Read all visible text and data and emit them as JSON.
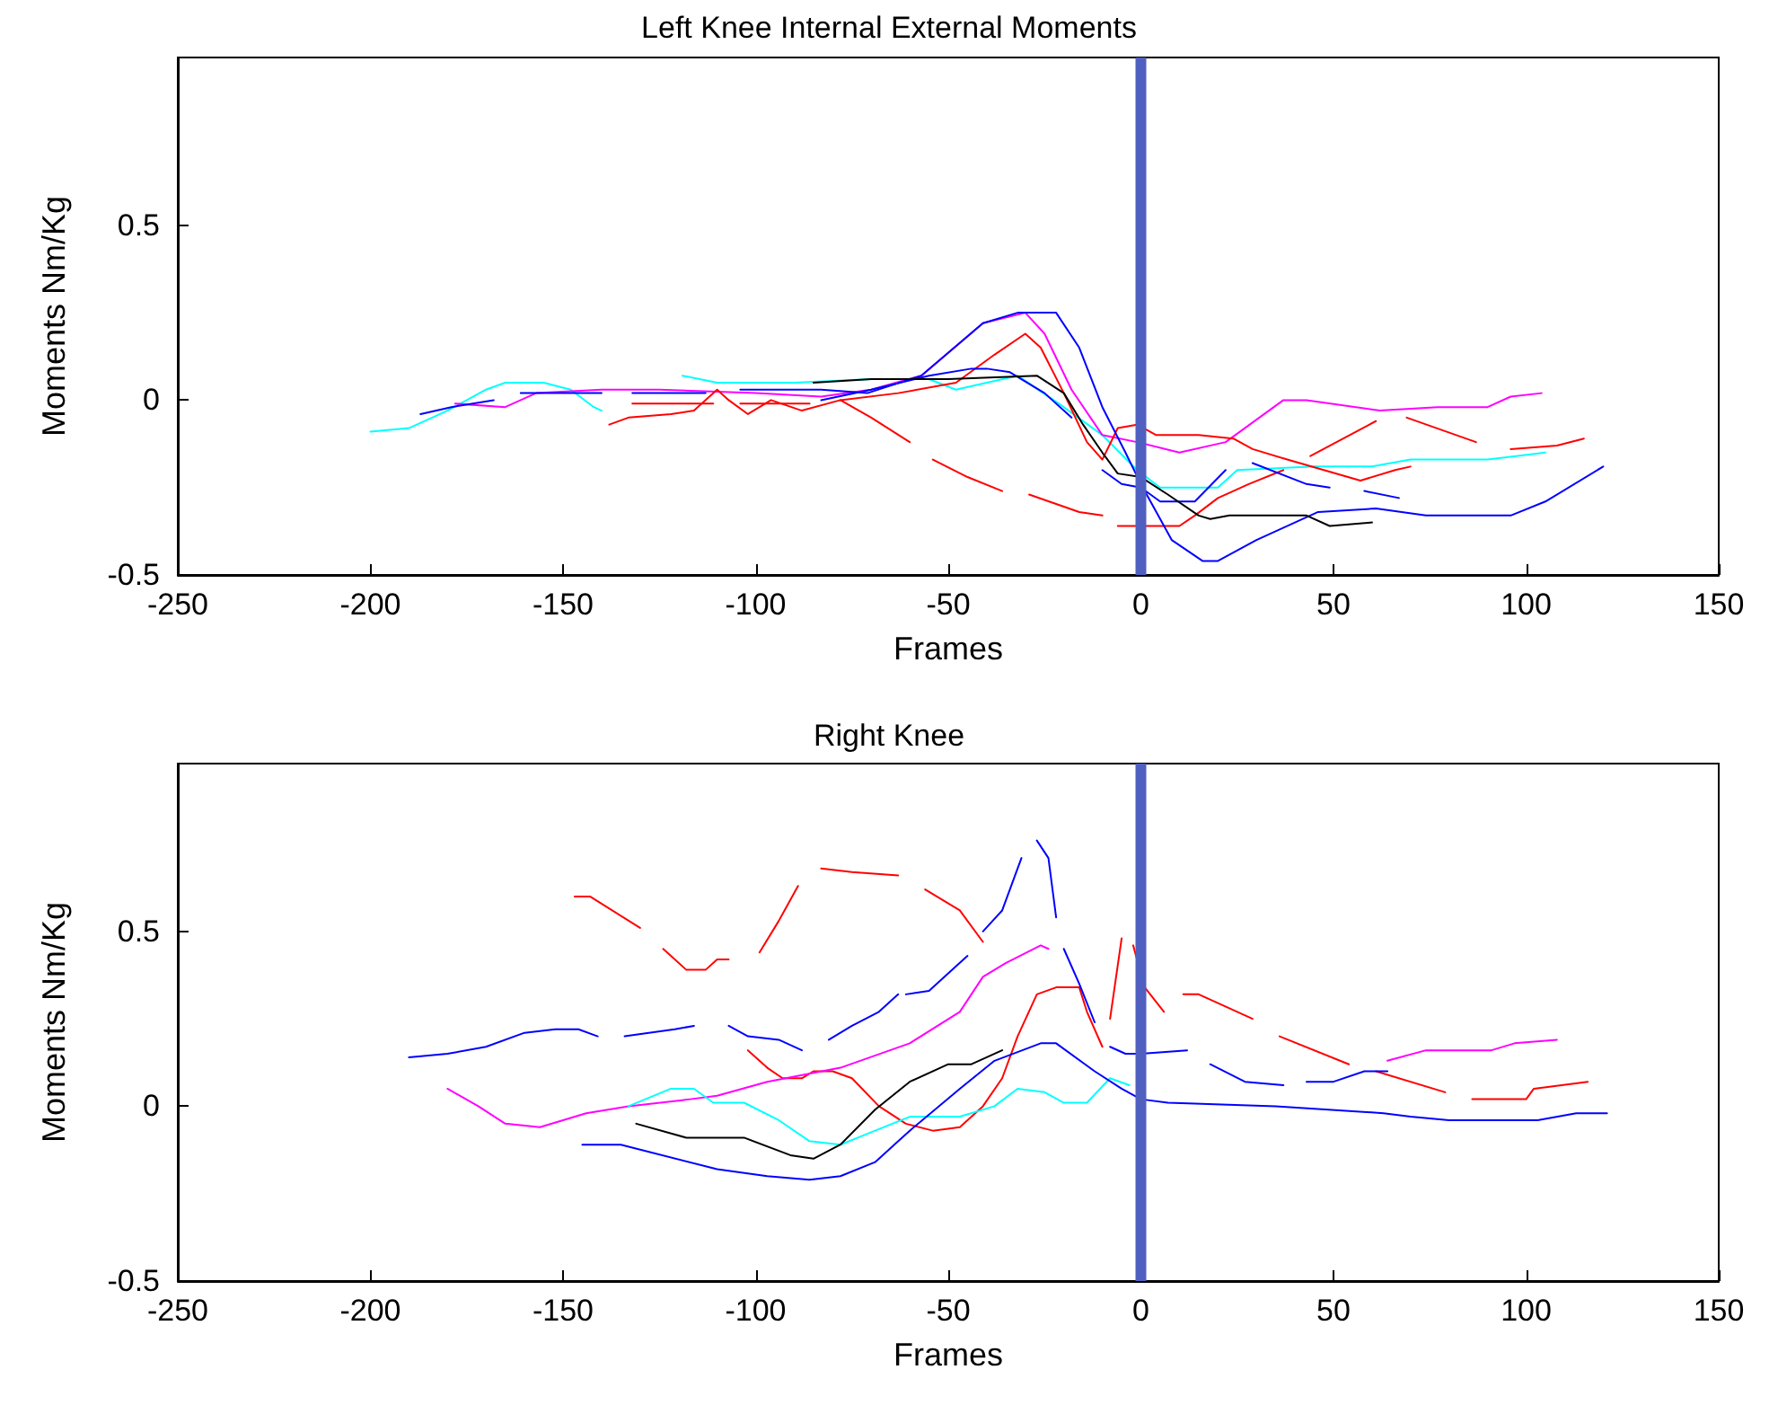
{
  "chart_data": [
    {
      "type": "line",
      "title": "Left Knee Internal External Moments",
      "xlabel": "Frames",
      "ylabel": "Moments Nm/Kg",
      "xlim": [
        -250,
        150
      ],
      "xticks": [
        -250,
        -200,
        -150,
        -100,
        -50,
        0,
        50,
        100,
        150
      ],
      "ylim": [
        -0.5,
        0.98
      ],
      "yticks": [
        -0.5,
        0,
        0.5
      ],
      "ref_lines": [
        {
          "axis": "x",
          "value": 0,
          "color": "#5060c0"
        }
      ],
      "series": [
        {
          "color": "#00ffff",
          "x": [
            -200,
            -190,
            -180,
            -170,
            -165,
            -155,
            -148,
            -142,
            -140,
            -130,
            -119,
            -110,
            -90,
            -70,
            -55,
            -48,
            -40,
            -32,
            -20,
            -10,
            -1,
            5,
            20,
            25,
            45,
            60,
            70,
            90,
            105
          ],
          "values": [
            -0.09,
            -0.08,
            -0.03,
            0.03,
            0.05,
            0.05,
            0.03,
            -0.02,
            -0.03,
            null,
            0.07,
            0.05,
            0.05,
            0.06,
            0.06,
            0.03,
            0.05,
            0.07,
            -0.02,
            -0.1,
            -0.2,
            -0.25,
            -0.25,
            -0.2,
            -0.19,
            -0.19,
            -0.17,
            -0.17,
            -0.15
          ]
        },
        {
          "color": "#ff00ff",
          "x": [
            -178,
            -165,
            -157,
            -140,
            -125,
            -100,
            -83,
            -70,
            -57,
            -41,
            -30,
            -25,
            -18,
            -10,
            -1,
            10,
            22,
            37,
            43,
            62,
            77,
            90,
            96,
            104
          ],
          "values": [
            -0.01,
            -0.02,
            0.02,
            0.03,
            0.03,
            0.02,
            0.01,
            0.03,
            0.07,
            0.22,
            0.25,
            0.19,
            0.03,
            -0.1,
            -0.12,
            -0.15,
            -0.12,
            0.0,
            0.0,
            -0.03,
            -0.02,
            -0.02,
            0.01,
            0.02
          ]
        },
        {
          "color": "#ff0000",
          "x": [
            -138,
            -133,
            -122,
            -116,
            -110,
            -107,
            -102,
            -96,
            -88,
            -78,
            -63,
            -48,
            -38,
            -30,
            -26,
            -20,
            -14,
            -10,
            -6,
            -1,
            4,
            15,
            24,
            29,
            38,
            57,
            66,
            70
          ],
          "values": [
            -0.07,
            -0.05,
            -0.04,
            -0.03,
            0.03,
            0.0,
            -0.04,
            0.0,
            -0.03,
            0.0,
            0.02,
            0.05,
            0.13,
            0.19,
            0.15,
            0.02,
            -0.12,
            -0.17,
            -0.08,
            -0.07,
            -0.1,
            -0.1,
            -0.11,
            -0.14,
            -0.17,
            -0.23,
            -0.2,
            -0.19
          ]
        },
        {
          "color": "#ff0000",
          "x": [
            -78,
            -70,
            -60,
            -57,
            -54,
            -45,
            -36,
            -33,
            -29,
            -16,
            -10,
            -8,
            -6,
            10,
            14,
            20,
            28,
            37,
            40,
            44,
            61,
            65,
            69,
            87,
            92,
            96,
            108,
            115
          ],
          "values": [
            0,
            -0.05,
            -0.12,
            null,
            -0.17,
            -0.22,
            -0.26,
            null,
            -0.27,
            -0.32,
            -0.33,
            null,
            -0.36,
            -0.36,
            -0.33,
            -0.28,
            -0.24,
            -0.2,
            null,
            -0.16,
            -0.06,
            null,
            -0.05,
            -0.12,
            null,
            -0.14,
            -0.13,
            -0.11
          ]
        },
        {
          "color": "#ff0000",
          "x": [
            -132,
            -111,
            -108,
            -104,
            -86
          ],
          "values": [
            -0.01,
            -0.01,
            null,
            -0.01,
            -0.01
          ]
        },
        {
          "color": "#0000ff",
          "x": [
            -187,
            -179,
            -168,
            -165,
            -161,
            -140,
            -136,
            -132,
            -113,
            -108,
            -104,
            -83,
            -71,
            -57,
            -41,
            -32,
            -22,
            -16,
            -10,
            -4,
            0,
            8,
            16,
            20,
            30,
            46,
            61,
            74,
            96,
            105,
            120
          ],
          "values": [
            -0.04,
            -0.02,
            0.0,
            null,
            0.02,
            0.02,
            null,
            0.02,
            0.02,
            null,
            0.03,
            0.03,
            0.02,
            0.07,
            0.22,
            0.25,
            0.25,
            0.15,
            -0.02,
            -0.15,
            -0.24,
            -0.4,
            -0.46,
            -0.46,
            -0.4,
            -0.32,
            -0.31,
            -0.33,
            -0.33,
            -0.29,
            -0.19
          ]
        },
        {
          "color": "#0000ff",
          "x": [
            -83,
            -70,
            -55,
            -44,
            -40,
            -34,
            -25,
            -18,
            -14,
            -10,
            -5,
            0,
            5,
            14,
            22,
            25,
            29,
            43,
            49,
            53,
            58,
            67
          ],
          "values": [
            0.0,
            0.03,
            0.07,
            0.09,
            0.09,
            0.08,
            0.02,
            -0.05,
            null,
            -0.2,
            -0.24,
            -0.25,
            -0.29,
            -0.29,
            -0.2,
            null,
            -0.18,
            -0.24,
            -0.25,
            null,
            -0.26,
            -0.28
          ]
        },
        {
          "color": "#000000",
          "x": [
            -85,
            -70,
            -50,
            -27,
            -20,
            -15,
            -10,
            -6,
            0,
            7,
            15,
            18,
            23,
            43,
            49,
            60
          ],
          "values": [
            0.05,
            0.06,
            0.06,
            0.07,
            0.02,
            -0.07,
            -0.15,
            -0.21,
            -0.22,
            -0.27,
            -0.33,
            -0.34,
            -0.33,
            -0.33,
            -0.36,
            -0.35
          ]
        }
      ]
    },
    {
      "type": "line",
      "title": "Right Knee",
      "xlabel": "Frames",
      "ylabel": "Moments Nm/Kg",
      "xlim": [
        -250,
        150
      ],
      "xticks": [
        -250,
        -200,
        -150,
        -100,
        -50,
        0,
        50,
        100,
        150
      ],
      "ylim": [
        -0.5,
        0.98
      ],
      "yticks": [
        -0.5,
        0,
        0.5
      ],
      "ref_lines": [
        {
          "axis": "x",
          "value": 0,
          "color": "#5060c0"
        }
      ],
      "series": [
        {
          "color": "#ff0000",
          "x": [
            -147,
            -143,
            -130,
            -127,
            -124,
            -118,
            -113,
            -110,
            -107,
            -103,
            -99,
            -94,
            -89,
            -86,
            -83,
            -75,
            -63,
            -60,
            -56,
            -47,
            -41,
            -25,
            -8,
            -5,
            -4,
            -2,
            1,
            6,
            9,
            11,
            15,
            29,
            32,
            36,
            54,
            58,
            61,
            79,
            82,
            86,
            100,
            102,
            116
          ],
          "values": [
            0.6,
            0.6,
            0.51,
            null,
            0.45,
            0.39,
            0.39,
            0.42,
            0.42,
            null,
            0.44,
            0.53,
            0.63,
            null,
            0.68,
            0.67,
            0.66,
            null,
            0.62,
            0.56,
            0.47,
            null,
            0.25,
            0.48,
            null,
            0.46,
            0.34,
            0.27,
            null,
            0.32,
            0.32,
            0.25,
            null,
            0.2,
            0.12,
            null,
            0.1,
            0.04,
            null,
            0.02,
            0.02,
            0.05,
            0.07
          ]
        },
        {
          "color": "#ff0000",
          "x": [
            -102,
            -97,
            -93,
            -88,
            -85,
            -80,
            -75,
            -68,
            -61,
            -54,
            -47,
            -41,
            -36,
            -32,
            -27,
            -22,
            -16,
            -14,
            -10
          ],
          "values": [
            0.16,
            0.11,
            0.08,
            0.08,
            0.1,
            0.1,
            0.08,
            0.0,
            -0.05,
            -0.07,
            -0.06,
            0.0,
            0.08,
            0.2,
            0.32,
            0.34,
            0.34,
            0.27,
            0.17
          ]
        },
        {
          "color": "#ff00ff",
          "x": [
            -180,
            -172,
            -165,
            -156,
            -144,
            -133,
            -117,
            -110,
            -97,
            -78,
            -60,
            -47,
            -41,
            -35,
            -26,
            -24,
            -20,
            64,
            74,
            91,
            97,
            108
          ],
          "values": [
            0.05,
            0.0,
            -0.05,
            -0.06,
            -0.02,
            0.0,
            0.02,
            0.03,
            0.07,
            0.11,
            0.18,
            0.27,
            0.37,
            0.41,
            0.46,
            0.45,
            null,
            0.13,
            0.16,
            0.16,
            0.18,
            0.19
          ]
        },
        {
          "color": "#00ffff",
          "x": [
            -133,
            -122,
            -116,
            -111,
            -103,
            -94,
            -86,
            -78,
            -69,
            -60,
            -47,
            -38,
            -32,
            -25,
            -20,
            -14,
            -8,
            -3
          ],
          "values": [
            0.0,
            0.05,
            0.05,
            0.01,
            0.01,
            -0.04,
            -0.1,
            -0.11,
            -0.07,
            -0.03,
            -0.03,
            0.0,
            0.05,
            0.04,
            0.01,
            0.01,
            0.08,
            0.06
          ]
        },
        {
          "color": "#000000",
          "x": [
            -131,
            -118,
            -103,
            -91,
            -85,
            -78,
            -69,
            -60,
            -50,
            -44,
            -36
          ],
          "values": [
            -0.05,
            -0.09,
            -0.09,
            -0.14,
            -0.15,
            -0.11,
            -0.01,
            0.07,
            0.12,
            0.12,
            0.16
          ]
        },
        {
          "color": "#0000ff",
          "x": [
            -145,
            -135,
            -110,
            -97,
            -86,
            -78,
            -69,
            -60,
            -47,
            -38,
            -26,
            -22,
            -12,
            -5,
            0,
            7,
            35,
            63,
            70,
            80,
            103,
            113,
            121
          ],
          "values": [
            -0.11,
            -0.11,
            -0.18,
            -0.2,
            -0.21,
            -0.2,
            -0.16,
            -0.07,
            0.05,
            0.13,
            0.18,
            0.18,
            0.1,
            0.05,
            0.02,
            0.01,
            0.0,
            -0.02,
            -0.03,
            -0.04,
            -0.04,
            -0.02,
            -0.02
          ]
        },
        {
          "color": "#0000ff",
          "x": [
            -190,
            -180,
            -170,
            -160,
            -152,
            -146,
            -141,
            -137,
            -134,
            -121,
            -116,
            -111,
            -107,
            -102,
            -94,
            -88,
            -84,
            -81,
            -75,
            -68,
            -63,
            -62,
            -61,
            -55,
            -47,
            -45,
            -43,
            -41,
            -36,
            -31,
            -29,
            -27,
            -24,
            -22,
            -21,
            -20,
            -16,
            -12,
            -10,
            -8,
            -4,
            0,
            12,
            15,
            18,
            27,
            37,
            40,
            43,
            50,
            58,
            64
          ],
          "values": [
            0.14,
            0.15,
            0.17,
            0.21,
            0.22,
            0.22,
            0.2,
            null,
            0.2,
            0.22,
            0.23,
            null,
            0.23,
            0.2,
            0.19,
            0.16,
            null,
            0.19,
            0.23,
            0.27,
            0.32,
            null,
            0.32,
            0.33,
            0.41,
            0.43,
            null,
            0.5,
            0.56,
            0.71,
            null,
            0.76,
            0.71,
            0.54,
            null,
            0.45,
            0.35,
            0.24,
            null,
            0.17,
            0.15,
            0.15,
            0.16,
            null,
            0.12,
            0.07,
            0.06,
            null,
            0.07,
            0.07,
            0.1,
            0.1
          ]
        }
      ]
    }
  ]
}
